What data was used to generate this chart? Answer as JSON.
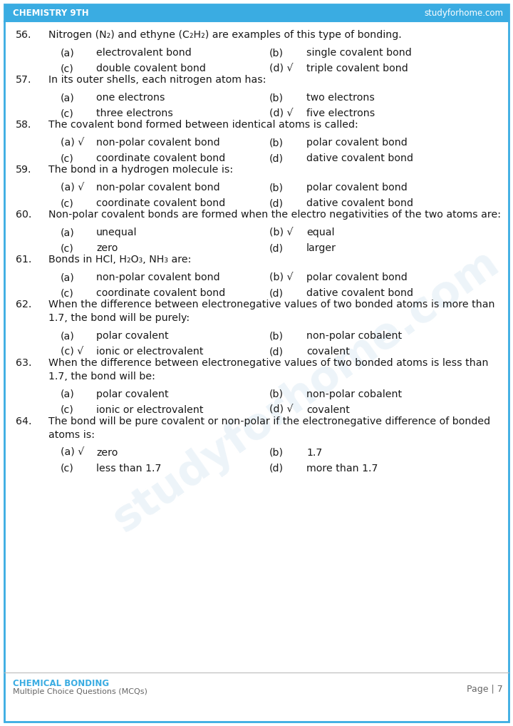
{
  "header_left": "CHEMISTRY 9TH",
  "header_right": "studyforhome.com",
  "header_color": "#3aace2",
  "footer_left_line1": "CHEMICAL BONDING",
  "footer_left_line2": "Multiple Choice Questions (MCQs)",
  "footer_right": "Page | 7",
  "footer_color": "#3aace2",
  "bg_color": "#ffffff",
  "border_color": "#3aace2",
  "text_color": "#1a1a1a",
  "watermark_color": "#b8d4e8",
  "watermark_alpha": 0.25,
  "questions": [
    {
      "num": "56.",
      "lines": [
        "Nitrogen (N₂) and ethyne (C₂H₂) are examples of this type of bonding."
      ],
      "opts": [
        [
          "(a)",
          "electrovalent bond",
          false
        ],
        [
          "(b)",
          "single covalent bond",
          false
        ],
        [
          "(c)",
          "double covalent bond",
          false
        ],
        [
          "(d) √",
          "triple covalent bond",
          true
        ]
      ]
    },
    {
      "num": "57.",
      "lines": [
        "In its outer shells, each nitrogen atom has:"
      ],
      "opts": [
        [
          "(a)",
          "one electrons",
          false
        ],
        [
          "(b)",
          "two electrons",
          false
        ],
        [
          "(c)",
          "three electrons",
          false
        ],
        [
          "(d) √",
          "five electrons",
          true
        ]
      ]
    },
    {
      "num": "58.",
      "lines": [
        "The covalent bond formed between identical atoms is called:"
      ],
      "opts": [
        [
          "(a) √",
          "non-polar covalent bond",
          true
        ],
        [
          "(b)",
          "polar covalent bond",
          false
        ],
        [
          "(c)",
          "coordinate covalent bond",
          false
        ],
        [
          "(d)",
          "dative covalent bond",
          false
        ]
      ]
    },
    {
      "num": "59.",
      "lines": [
        "The bond in a hydrogen molecule is:"
      ],
      "opts": [
        [
          "(a) √",
          "non-polar covalent bond",
          true
        ],
        [
          "(b)",
          "polar covalent bond",
          false
        ],
        [
          "(c)",
          "coordinate covalent bond",
          false
        ],
        [
          "(d)",
          "dative covalent bond",
          false
        ]
      ]
    },
    {
      "num": "60.",
      "lines": [
        "Non-polar covalent bonds are formed when the electro negativities of the two atoms are:"
      ],
      "opts": [
        [
          "(a)",
          "unequal",
          false
        ],
        [
          "(b) √",
          "equal",
          true
        ],
        [
          "(c)",
          "zero",
          false
        ],
        [
          "(d)",
          "larger",
          false
        ]
      ]
    },
    {
      "num": "61.",
      "lines": [
        "Bonds in HCl, H₂O₃, NH₃ are:"
      ],
      "opts": [
        [
          "(a)",
          "non-polar covalent bond",
          false
        ],
        [
          "(b) √",
          "polar covalent bond",
          true
        ],
        [
          "(c)",
          "coordinate covalent bond",
          false
        ],
        [
          "(d)",
          "dative covalent bond",
          false
        ]
      ]
    },
    {
      "num": "62.",
      "lines": [
        "When the difference between electronegative values of two bonded atoms is more than",
        "1.7, the bond will be purely:"
      ],
      "opts": [
        [
          "(a)",
          "polar covalent",
          false
        ],
        [
          "(b)",
          "non-polar cobalent",
          false
        ],
        [
          "(c) √",
          "ionic or electrovalent",
          true
        ],
        [
          "(d)",
          "covalent",
          false
        ]
      ]
    },
    {
      "num": "63.",
      "lines": [
        "When the difference between electronegative values of two bonded atoms is less than",
        "1.7, the bond will be:"
      ],
      "opts": [
        [
          "(a)",
          "polar covalent",
          false
        ],
        [
          "(b)",
          "non-polar cobalent",
          false
        ],
        [
          "(c)",
          "ionic or electrovalent",
          false
        ],
        [
          "(d) √",
          "covalent",
          true
        ]
      ]
    },
    {
      "num": "64.",
      "lines": [
        "The bond will be pure covalent or non-polar if the electronegative difference of bonded",
        "atoms is:"
      ],
      "opts": [
        [
          "(a) √",
          "zero",
          true
        ],
        [
          "(b)",
          "1.7",
          false
        ],
        [
          "(c)",
          "less than 1.7",
          false
        ],
        [
          "(d)",
          "more than 1.7",
          false
        ]
      ]
    }
  ]
}
